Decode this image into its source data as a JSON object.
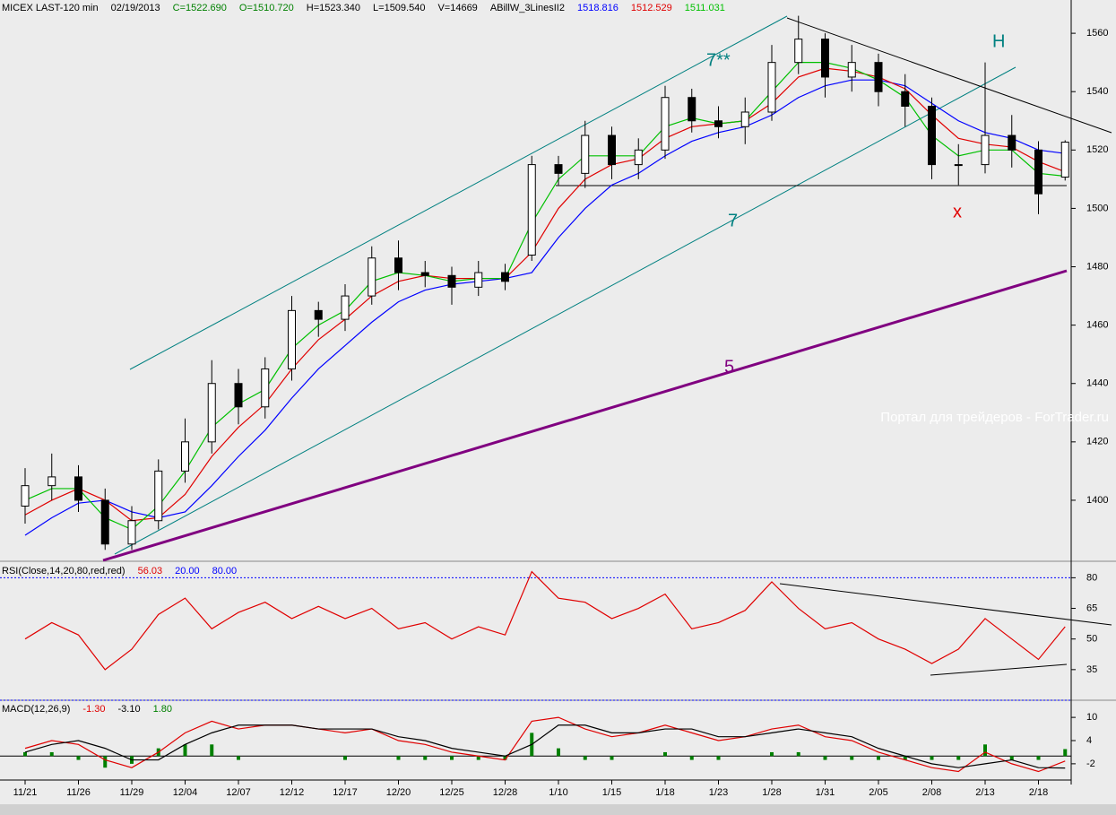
{
  "chart_data": [
    {
      "type": "candlestick",
      "title": "MICEX LAST-120 min",
      "header": [
        {
          "text": "02/19/2013",
          "color": "#000000"
        },
        {
          "text": "C=1522.690",
          "color": "#008000"
        },
        {
          "text": "O=1510.720",
          "color": "#008000"
        },
        {
          "text": "H=1523.340",
          "color": "#000000"
        },
        {
          "text": "L=1509.540",
          "color": "#000000"
        },
        {
          "text": "V=14669",
          "color": "#000000"
        },
        {
          "text": "ABillW_3LinesII2",
          "color": "#000000"
        }
      ],
      "categories": [
        "11/21",
        null,
        "11/26",
        null,
        "11/29",
        null,
        "12/04",
        null,
        "12/07",
        null,
        "12/12",
        null,
        "12/17",
        null,
        "12/20",
        null,
        "12/25",
        null,
        "12/28",
        null,
        "1/10",
        null,
        "1/15",
        null,
        "1/18",
        null,
        "1/23",
        null,
        "1/28",
        null,
        "1/31",
        null,
        "2/05",
        null,
        "2/08",
        null,
        "2/13",
        null,
        "2/18",
        null
      ],
      "open": [
        1398,
        1405,
        1408,
        1400,
        1385,
        1393,
        1410,
        1420,
        1440,
        1432,
        1445,
        1465,
        1462,
        1470,
        1483,
        1478,
        1477,
        1473,
        1478,
        1484,
        1515,
        1512,
        1525,
        1515,
        1520,
        1538,
        1530,
        1528,
        1533,
        1550,
        1558,
        1545,
        1550,
        1540,
        1535,
        1515,
        1515,
        1525,
        1520,
        1510.72
      ],
      "high": [
        1411,
        1416,
        1412,
        1404,
        1398,
        1414,
        1428,
        1448,
        1445,
        1449,
        1470,
        1468,
        1474,
        1487,
        1489,
        1482,
        1480,
        1482,
        1481,
        1518,
        1518,
        1530,
        1528,
        1524,
        1542,
        1541,
        1535,
        1538,
        1556,
        1566,
        1560,
        1556,
        1553,
        1546,
        1538,
        1522,
        1550,
        1532,
        1523,
        1523.34
      ],
      "low": [
        1392,
        1400,
        1396,
        1383,
        1383,
        1390,
        1406,
        1416,
        1426,
        1428,
        1441,
        1456,
        1458,
        1467,
        1472,
        1473,
        1467,
        1470,
        1472,
        1482,
        1508,
        1507,
        1510,
        1510,
        1517,
        1526,
        1524,
        1522,
        1530,
        1546,
        1538,
        1540,
        1535,
        1528,
        1510,
        1508,
        1512,
        1514,
        1498,
        1509.54
      ],
      "close": [
        1405,
        1408,
        1400,
        1385,
        1393,
        1410,
        1420,
        1440,
        1432,
        1445,
        1465,
        1462,
        1470,
        1483,
        1478,
        1477,
        1473,
        1478,
        1475,
        1515,
        1512,
        1525,
        1515,
        1520,
        1538,
        1530,
        1528,
        1533,
        1550,
        1558,
        1545,
        1550,
        1540,
        1535,
        1515,
        1515,
        1525,
        1520,
        1505,
        1522.69
      ],
      "series": [
        {
          "color": "#0000ff",
          "last_label": "1518.816",
          "values": [
            1388,
            1394,
            1399,
            1400,
            1396,
            1394,
            1396,
            1405,
            1415,
            1424,
            1435,
            1445,
            1453,
            1461,
            1468,
            1472,
            1474,
            1475,
            1476,
            1478,
            1490,
            1500,
            1508,
            1512,
            1518,
            1523,
            1526,
            1528,
            1532,
            1538,
            1542,
            1544,
            1544,
            1542,
            1536,
            1530,
            1526,
            1524,
            1520,
            1518.816
          ]
        },
        {
          "color": "#e00000",
          "last_label": "1512.529",
          "values": [
            1395,
            1400,
            1404,
            1400,
            1393,
            1394,
            1402,
            1415,
            1425,
            1433,
            1445,
            1455,
            1462,
            1470,
            1475,
            1477,
            1476,
            1476,
            1476,
            1485,
            1500,
            1510,
            1515,
            1517,
            1524,
            1528,
            1529,
            1530,
            1536,
            1545,
            1548,
            1547,
            1545,
            1541,
            1532,
            1524,
            1522,
            1521,
            1516,
            1512.529
          ]
        },
        {
          "color": "#00c000",
          "last_label": "1511.031",
          "values": [
            1400,
            1404,
            1404,
            1394,
            1390,
            1398,
            1410,
            1425,
            1433,
            1438,
            1452,
            1460,
            1465,
            1475,
            1478,
            1477,
            1475,
            1476,
            1476,
            1495,
            1510,
            1518,
            1518,
            1518,
            1528,
            1531,
            1529,
            1530,
            1540,
            1550,
            1550,
            1548,
            1544,
            1538,
            1525,
            1518,
            1520,
            1520,
            1512,
            1511.031
          ]
        }
      ],
      "ylim": [
        1379.4,
        1571.4
      ],
      "yticks": [
        1400,
        1420,
        1440,
        1460,
        1480,
        1500,
        1520,
        1540,
        1560
      ],
      "annotations": {
        "channel_top": "7**",
        "channel_bottom": "7",
        "support": "5",
        "head": "H",
        "cross": "x",
        "watermark": "Портал для трейдеров - ForTrader.ru"
      }
    },
    {
      "type": "line",
      "title": "RSI(Close,14,20,80,red,red)",
      "header": [
        {
          "text": "56.03",
          "color": "#e00000"
        },
        {
          "text": "20.00",
          "color": "#0000ff"
        },
        {
          "text": "80.00",
          "color": "#0000ff"
        }
      ],
      "series": [
        {
          "color": "#e00000",
          "values": [
            50,
            58,
            52,
            35,
            45,
            62,
            70,
            55,
            63,
            68,
            60,
            66,
            60,
            65,
            55,
            58,
            50,
            56,
            52,
            83,
            70,
            68,
            60,
            65,
            72,
            55,
            58,
            64,
            78,
            65,
            55,
            58,
            50,
            45,
            38,
            45,
            60,
            50,
            40,
            56.03
          ]
        }
      ],
      "levels": [
        20,
        80
      ],
      "level_color": "#0000ff",
      "ylim": [
        20,
        87.2
      ],
      "yticks": [
        35,
        50,
        65,
        80
      ]
    },
    {
      "type": "macd",
      "title": "MACD(12,26,9)",
      "header": [
        {
          "text": "-1.30",
          "color": "#e00000"
        },
        {
          "text": "-3.10",
          "color": "#000000"
        },
        {
          "text": "1.80",
          "color": "#008000"
        }
      ],
      "series": [
        {
          "color": "#e00000",
          "values": [
            2,
            4,
            3,
            -1,
            -3,
            1,
            6,
            9,
            7,
            8,
            8,
            7,
            6,
            7,
            4,
            3,
            1,
            0,
            -1,
            9,
            10,
            7,
            5,
            6,
            8,
            6,
            4,
            5,
            7,
            8,
            5,
            4,
            1,
            -1,
            -3,
            -4,
            1,
            -2,
            -4,
            -1.3
          ]
        },
        {
          "color": "#000000",
          "values": [
            1,
            3,
            4,
            2,
            -1,
            -1,
            3,
            6,
            8,
            8,
            8,
            7,
            7,
            7,
            5,
            4,
            2,
            1,
            0,
            3,
            8,
            8,
            6,
            6,
            7,
            7,
            5,
            5,
            6,
            7,
            6,
            5,
            2,
            0,
            -2,
            -3,
            -2,
            -1,
            -3,
            -3.1
          ]
        }
      ],
      "histogram": {
        "color": "#008000",
        "values": [
          1,
          1,
          -1,
          -3,
          -2,
          2,
          3,
          3,
          -1,
          0,
          0,
          0,
          -1,
          0,
          -1,
          -1,
          -1,
          -1,
          -1,
          6,
          2,
          -1,
          -1,
          0,
          1,
          -1,
          -1,
          0,
          1,
          1,
          -1,
          -1,
          -1,
          -1,
          -1,
          -1,
          3,
          -1,
          -1,
          1.8
        ]
      },
      "ylim": [
        -6.2,
        14.2
      ],
      "yticks": [
        -2,
        4,
        10
      ]
    }
  ]
}
